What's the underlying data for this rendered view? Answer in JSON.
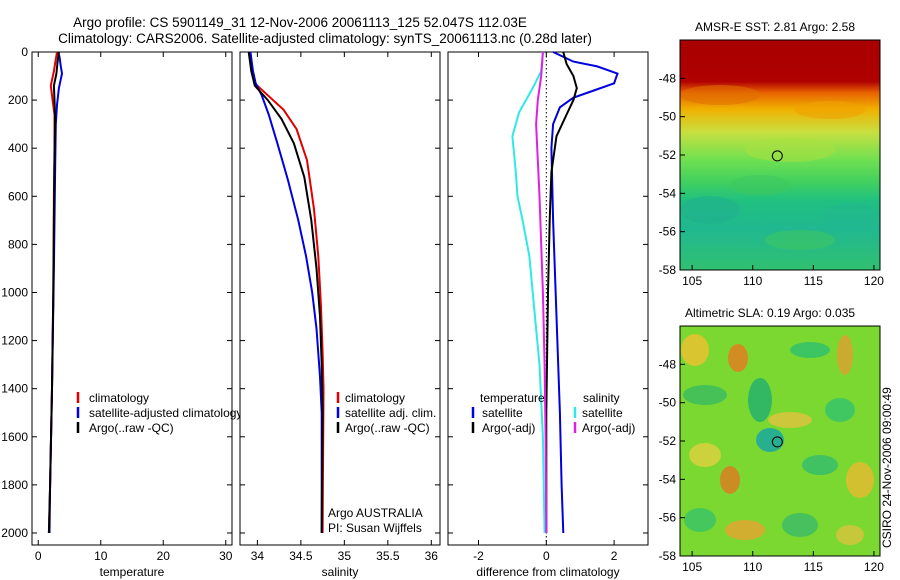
{
  "header": {
    "line1": "Argo profile: CS 5901149_31 12-Nov-2006 20061113_125 52.047S 112.03E",
    "line2": "Climatology: CARS2006. Satellite-adjusted climatology: synTS_20061113.nc (0.28d later)"
  },
  "credit": "CSIRO 24-Nov-2006 09:00:49",
  "chart_data": [
    {
      "type": "line",
      "xlabel": "temperature",
      "xlim": [
        -1,
        31
      ],
      "ylim": [
        0,
        2050
      ],
      "y_reversed": true,
      "xticks": [
        0,
        10,
        20,
        30
      ],
      "yticks": [
        0,
        200,
        400,
        600,
        800,
        1000,
        1200,
        1400,
        1600,
        1800,
        2000
      ],
      "series": [
        {
          "name": "climatology",
          "color": "#e00000",
          "points": [
            [
              3.0,
              0
            ],
            [
              2.8,
              30
            ],
            [
              2.5,
              80
            ],
            [
              2.0,
              140
            ],
            [
              2.3,
              200
            ],
            [
              2.6,
              260
            ],
            [
              2.6,
              400
            ],
            [
              2.5,
              600
            ],
            [
              2.4,
              1000
            ],
            [
              2.2,
              1400
            ],
            [
              1.9,
              1800
            ],
            [
              1.7,
              2000
            ]
          ]
        },
        {
          "name": "satellite-adjusted climatology",
          "color": "#0000e0",
          "points": [
            [
              3.2,
              0
            ],
            [
              3.4,
              20
            ],
            [
              3.6,
              60
            ],
            [
              3.8,
              90
            ],
            [
              3.3,
              150
            ],
            [
              3.0,
              220
            ],
            [
              2.8,
              300
            ],
            [
              2.7,
              500
            ],
            [
              2.5,
              900
            ],
            [
              2.2,
              1400
            ],
            [
              1.9,
              1800
            ],
            [
              1.8,
              2000
            ]
          ]
        },
        {
          "name": "Argo(..raw -QC)",
          "color": "#000000",
          "points": [
            [
              3.3,
              0
            ],
            [
              3.1,
              40
            ],
            [
              2.9,
              90
            ],
            [
              2.5,
              140
            ],
            [
              2.6,
              200
            ],
            [
              2.7,
              280
            ],
            [
              2.6,
              450
            ],
            [
              2.5,
              700
            ],
            [
              2.4,
              1000
            ],
            [
              2.2,
              1400
            ],
            [
              1.9,
              1800
            ],
            [
              1.7,
              2000
            ]
          ]
        }
      ]
    },
    {
      "type": "line",
      "xlabel": "salinity",
      "xlim": [
        33.8,
        36.1
      ],
      "ylim": [
        0,
        2050
      ],
      "y_reversed": true,
      "xticks": [
        34,
        34.5,
        35,
        35.5,
        36
      ],
      "series": [
        {
          "name": "climatology",
          "color": "#e00000",
          "points": [
            [
              33.92,
              0
            ],
            [
              33.94,
              80
            ],
            [
              33.97,
              130
            ],
            [
              34.12,
              180
            ],
            [
              34.3,
              240
            ],
            [
              34.45,
              320
            ],
            [
              34.57,
              450
            ],
            [
              34.65,
              650
            ],
            [
              34.7,
              850
            ],
            [
              34.73,
              1050
            ],
            [
              34.75,
              1250
            ],
            [
              34.76,
              1400
            ],
            [
              34.75,
              2000
            ]
          ]
        },
        {
          "name": "satellite adj. clim.",
          "color": "#0000e0",
          "points": [
            [
              33.92,
              0
            ],
            [
              33.95,
              80
            ],
            [
              33.98,
              130
            ],
            [
              34.05,
              180
            ],
            [
              34.13,
              260
            ],
            [
              34.23,
              380
            ],
            [
              34.35,
              530
            ],
            [
              34.47,
              700
            ],
            [
              34.56,
              850
            ],
            [
              34.63,
              1000
            ],
            [
              34.68,
              1150
            ],
            [
              34.72,
              1350
            ],
            [
              34.74,
              1500
            ],
            [
              34.74,
              2000
            ]
          ]
        },
        {
          "name": "Argo(..raw -QC)",
          "color": "#000000",
          "points": [
            [
              33.9,
              0
            ],
            [
              33.93,
              80
            ],
            [
              33.97,
              140
            ],
            [
              34.12,
              200
            ],
            [
              34.28,
              280
            ],
            [
              34.42,
              380
            ],
            [
              34.54,
              520
            ],
            [
              34.62,
              700
            ],
            [
              34.68,
              900
            ],
            [
              34.72,
              1100
            ],
            [
              34.74,
              1300
            ],
            [
              34.75,
              1500
            ],
            [
              34.74,
              2000
            ]
          ]
        }
      ],
      "annotation": [
        "Argo AUSTRALIA",
        "PI: Susan Wijffels"
      ]
    },
    {
      "type": "line",
      "xlabel": "difference from climatology",
      "xlim": [
        -2.9,
        3.0
      ],
      "ylim": [
        0,
        2050
      ],
      "y_reversed": true,
      "xticks": [
        -2,
        0,
        2
      ],
      "zero_line": true,
      "legend_groups": [
        "temperature",
        "salinity"
      ],
      "series": [
        {
          "name": "satellite",
          "group": "temperature",
          "color": "#0000e0",
          "points": [
            [
              0.2,
              0
            ],
            [
              0.8,
              40
            ],
            [
              1.5,
              60
            ],
            [
              2.1,
              90
            ],
            [
              2.0,
              130
            ],
            [
              1.4,
              160
            ],
            [
              0.8,
              190
            ],
            [
              0.4,
              230
            ],
            [
              0.2,
              300
            ],
            [
              0.15,
              400
            ],
            [
              0.2,
              700
            ],
            [
              0.3,
              1100
            ],
            [
              0.4,
              1500
            ],
            [
              0.45,
              1800
            ],
            [
              0.5,
              2000
            ]
          ]
        },
        {
          "name": "Argo(-adj)",
          "group": "temperature",
          "color": "#000000",
          "points": [
            [
              0.5,
              0
            ],
            [
              0.6,
              50
            ],
            [
              0.8,
              100
            ],
            [
              0.9,
              150
            ],
            [
              0.8,
              200
            ],
            [
              0.6,
              260
            ],
            [
              0.3,
              350
            ],
            [
              0.15,
              500
            ],
            [
              0.1,
              700
            ],
            [
              0.05,
              1000
            ],
            [
              0.0,
              1500
            ],
            [
              0.0,
              2000
            ]
          ]
        },
        {
          "name": "satellite",
          "group": "salinity",
          "color": "#30e8e8",
          "points": [
            [
              -0.1,
              0
            ],
            [
              -0.15,
              80
            ],
            [
              -0.4,
              150
            ],
            [
              -0.8,
              250
            ],
            [
              -1.0,
              350
            ],
            [
              -0.9,
              500
            ],
            [
              -0.85,
              600
            ],
            [
              -0.7,
              700
            ],
            [
              -0.5,
              850
            ],
            [
              -0.4,
              1000
            ],
            [
              -0.2,
              1300
            ],
            [
              -0.1,
              1600
            ],
            [
              -0.05,
              2000
            ]
          ]
        },
        {
          "name": "Argo(-adj)",
          "group": "salinity",
          "color": "#e020e0",
          "points": [
            [
              -0.1,
              0
            ],
            [
              -0.15,
              100
            ],
            [
              -0.25,
              200
            ],
            [
              -0.3,
              300
            ],
            [
              -0.25,
              450
            ],
            [
              -0.2,
              600
            ],
            [
              -0.15,
              800
            ],
            [
              -0.1,
              1000
            ],
            [
              -0.05,
              1300
            ],
            [
              -0.02,
              1600
            ],
            [
              0.0,
              2000
            ]
          ]
        }
      ]
    },
    {
      "type": "heatmap",
      "title": "AMSR-E SST: 2.81 Argo: 2.58",
      "xlim": [
        104,
        120.5
      ],
      "ylim": [
        -58,
        -46
      ],
      "xticks": [
        105,
        110,
        115,
        120
      ],
      "yticks": [
        -48,
        -50,
        -52,
        -54,
        -56,
        -58
      ],
      "marker": {
        "lon": 112.03,
        "lat": -52.047
      }
    },
    {
      "type": "heatmap",
      "title": "Altimetric SLA: 0.19 Argo: 0.035",
      "xlim": [
        104,
        120.5
      ],
      "ylim": [
        -58,
        -46
      ],
      "xticks": [
        105,
        110,
        115,
        120
      ],
      "yticks": [
        -48,
        -50,
        -52,
        -54,
        -56,
        -58
      ],
      "marker": {
        "lon": 112.03,
        "lat": -52.047
      }
    }
  ]
}
